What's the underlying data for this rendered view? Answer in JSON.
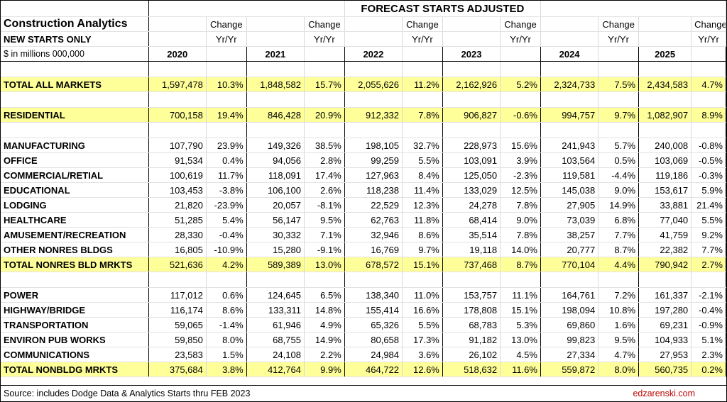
{
  "title": "FORECAST STARTS ADJUSTED",
  "app_name": "Construction Analytics",
  "subtitle": "NEW STARTS ONLY",
  "units": "$ in millions 000,000",
  "change_label": "Change",
  "yryr_label": "Yr/Yr",
  "years": [
    "2020",
    "2021",
    "2022",
    "2023",
    "2024",
    "2025"
  ],
  "rows": [
    {
      "label": "TOTAL ALL MARKETS",
      "highlight": true,
      "values": [
        "1,597,478",
        "10.3%",
        "1,848,582",
        "15.7%",
        "2,055,626",
        "11.2%",
        "2,162,926",
        "5.2%",
        "2,324,733",
        "7.5%",
        "2,434,583",
        "4.7%"
      ]
    },
    {
      "label": "RESIDENTIAL",
      "highlight": true,
      "values": [
        "700,158",
        "19.4%",
        "846,428",
        "20.9%",
        "912,332",
        "7.8%",
        "906,827",
        "-0.6%",
        "994,757",
        "9.7%",
        "1,082,907",
        "8.9%"
      ]
    },
    {
      "label": "MANUFACTURING",
      "highlight": false,
      "values": [
        "107,790",
        "23.9%",
        "149,326",
        "38.5%",
        "198,105",
        "32.7%",
        "228,973",
        "15.6%",
        "241,943",
        "5.7%",
        "240,008",
        "-0.8%"
      ]
    },
    {
      "label": "OFFICE",
      "highlight": false,
      "values": [
        "91,534",
        "0.4%",
        "94,056",
        "2.8%",
        "99,259",
        "5.5%",
        "103,091",
        "3.9%",
        "103,564",
        "0.5%",
        "103,069",
        "-0.5%"
      ]
    },
    {
      "label": "COMMERCIAL/RETIAL",
      "highlight": false,
      "values": [
        "100,619",
        "11.7%",
        "118,091",
        "17.4%",
        "127,963",
        "8.4%",
        "125,050",
        "-2.3%",
        "119,581",
        "-4.4%",
        "119,186",
        "-0.3%"
      ]
    },
    {
      "label": "EDUCATIONAL",
      "highlight": false,
      "values": [
        "103,453",
        "-3.8%",
        "106,100",
        "2.6%",
        "118,238",
        "11.4%",
        "133,029",
        "12.5%",
        "145,038",
        "9.0%",
        "153,617",
        "5.9%"
      ]
    },
    {
      "label": "LODGING",
      "highlight": false,
      "values": [
        "21,820",
        "-23.9%",
        "20,057",
        "-8.1%",
        "22,529",
        "12.3%",
        "24,278",
        "7.8%",
        "27,905",
        "14.9%",
        "33,881",
        "21.4%"
      ]
    },
    {
      "label": "HEALTHCARE",
      "highlight": false,
      "values": [
        "51,285",
        "5.4%",
        "56,147",
        "9.5%",
        "62,763",
        "11.8%",
        "68,414",
        "9.0%",
        "73,039",
        "6.8%",
        "77,040",
        "5.5%"
      ]
    },
    {
      "label": "AMUSEMENT/RECREATION",
      "highlight": false,
      "values": [
        "28,330",
        "-0.4%",
        "30,332",
        "7.1%",
        "32,946",
        "8.6%",
        "35,514",
        "7.8%",
        "38,257",
        "7.7%",
        "41,759",
        "9.2%"
      ]
    },
    {
      "label": "OTHER NONRES BLDGS",
      "highlight": false,
      "values": [
        "16,805",
        "-10.9%",
        "15,280",
        "-9.1%",
        "16,769",
        "9.7%",
        "19,118",
        "14.0%",
        "20,777",
        "8.7%",
        "22,382",
        "7.7%"
      ]
    },
    {
      "label": "TOTAL NONRES BLD MRKTS",
      "highlight": true,
      "values": [
        "521,636",
        "4.2%",
        "589,389",
        "13.0%",
        "678,572",
        "15.1%",
        "737,468",
        "8.7%",
        "770,104",
        "4.4%",
        "790,942",
        "2.7%"
      ]
    },
    {
      "label": "POWER",
      "highlight": false,
      "values": [
        "117,012",
        "0.6%",
        "124,645",
        "6.5%",
        "138,340",
        "11.0%",
        "153,757",
        "11.1%",
        "164,761",
        "7.2%",
        "161,337",
        "-2.1%"
      ]
    },
    {
      "label": "HIGHWAY/BRIDGE",
      "highlight": false,
      "values": [
        "116,174",
        "8.6%",
        "133,311",
        "14.8%",
        "155,414",
        "16.6%",
        "178,808",
        "15.1%",
        "198,094",
        "10.8%",
        "197,280",
        "-0.4%"
      ]
    },
    {
      "label": "TRANSPORTATION",
      "highlight": false,
      "values": [
        "59,065",
        "-1.4%",
        "61,946",
        "4.9%",
        "65,326",
        "5.5%",
        "68,783",
        "5.3%",
        "69,860",
        "1.6%",
        "69,231",
        "-0.9%"
      ]
    },
    {
      "label": "ENVIRON PUB WORKS",
      "highlight": false,
      "values": [
        "59,850",
        "8.0%",
        "68,755",
        "14.9%",
        "80,658",
        "17.3%",
        "91,182",
        "13.0%",
        "99,823",
        "9.5%",
        "104,933",
        "5.1%"
      ]
    },
    {
      "label": "COMMUNICATIONS",
      "highlight": false,
      "values": [
        "23,583",
        "1.5%",
        "24,108",
        "2.2%",
        "24,984",
        "3.6%",
        "26,102",
        "4.5%",
        "27,334",
        "4.7%",
        "27,953",
        "2.3%"
      ]
    },
    {
      "label": "TOTAL NONBLDG MRKTS",
      "highlight": true,
      "values": [
        "375,684",
        "3.8%",
        "412,764",
        "9.9%",
        "464,722",
        "12.6%",
        "518,632",
        "11.6%",
        "559,872",
        "8.0%",
        "560,735",
        "0.2%"
      ]
    }
  ],
  "footer": {
    "source": "Source: includes Dodge Data & Analytics Starts thru FEB 2023",
    "site": "edzarenski.com"
  },
  "colors": {
    "highlight": "#ffff99",
    "site_link": "#c00000"
  }
}
